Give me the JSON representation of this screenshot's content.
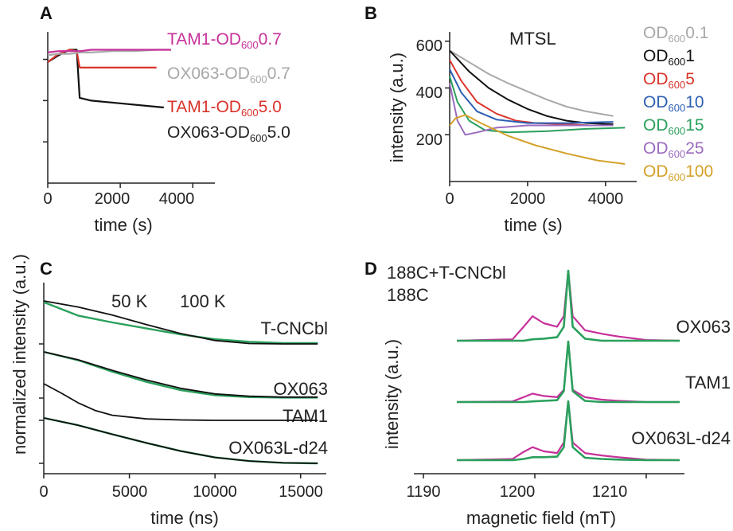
{
  "left_ylabel": "normalized intensity (a.u.)",
  "chart_data": [
    {
      "panel": "A",
      "type": "line",
      "xlabel": "time (s)",
      "xlim": [
        0,
        4500
      ],
      "ylim": [
        0,
        1.1
      ],
      "xticks": [
        "0",
        "2000",
        "4000"
      ],
      "series": [
        {
          "pre": "TAM1-OD",
          "sub": "600",
          "post": "0.7",
          "color": "#c7309a",
          "x": [
            0,
            300,
            600,
            900,
            1200,
            1800,
            2400,
            3000,
            3400
          ],
          "y": [
            0.95,
            0.96,
            0.96,
            0.96,
            0.97,
            0.97,
            0.97,
            0.97,
            0.97
          ]
        },
        {
          "pre": "OX063-OD",
          "sub": "600",
          "post": "0.7",
          "color": "#a8a8a8",
          "x": [
            0,
            300,
            600,
            900,
            1200,
            1800,
            2400,
            3000,
            3400
          ],
          "y": [
            0.93,
            0.94,
            0.94,
            0.95,
            0.95,
            0.96,
            0.96,
            0.97,
            0.97
          ]
        },
        {
          "pre": "TAM1-OD",
          "sub": "600",
          "post": "5.0",
          "color": "#d9342b",
          "x": [
            0,
            300,
            600,
            800,
            880,
            1200,
            2000,
            3000
          ],
          "y": [
            0.88,
            0.94,
            0.97,
            0.96,
            0.84,
            0.84,
            0.84,
            0.84
          ]
        },
        {
          "pre": "OX063-OD",
          "sub": "600",
          "post": "5.0",
          "color": "#111111",
          "x": [
            0,
            300,
            600,
            800,
            880,
            1200,
            2000,
            3200
          ],
          "y": [
            0.88,
            0.93,
            0.97,
            0.97,
            0.62,
            0.6,
            0.58,
            0.55
          ]
        }
      ]
    },
    {
      "panel": "B",
      "type": "line",
      "title": "MTSL",
      "xlabel": "time (s)",
      "ylabel": "intensity (a.u.)",
      "xlim": [
        0,
        4800
      ],
      "ylim": [
        0,
        640
      ],
      "xticks": [
        "0",
        "2000",
        "4000"
      ],
      "yticks": [
        "200",
        "400",
        "600"
      ],
      "series": [
        {
          "pre": "OD",
          "sub": "600",
          "post": "0.1",
          "color": "#a8a8a8",
          "x": [
            0,
            500,
            1000,
            1500,
            2000,
            2500,
            3000,
            3500,
            4200
          ],
          "y": [
            560,
            510,
            460,
            420,
            385,
            350,
            320,
            300,
            280
          ]
        },
        {
          "pre": "OD",
          "sub": "600",
          "post": "1",
          "color": "#111111",
          "x": [
            0,
            500,
            1000,
            1500,
            2000,
            2500,
            3000,
            3500,
            4200
          ],
          "y": [
            560,
            470,
            400,
            350,
            310,
            280,
            260,
            250,
            245
          ]
        },
        {
          "pre": "OD",
          "sub": "600",
          "post": "5",
          "color": "#d9342b",
          "x": [
            0,
            300,
            700,
            1200,
            1700,
            2200,
            3000,
            3600
          ],
          "y": [
            520,
            430,
            340,
            290,
            260,
            250,
            245,
            240
          ]
        },
        {
          "pre": "OD",
          "sub": "600",
          "post": "10",
          "color": "#2c5fb3",
          "x": [
            0,
            300,
            700,
            1200,
            2000,
            3000,
            4200
          ],
          "y": [
            480,
            380,
            300,
            265,
            250,
            250,
            255
          ]
        },
        {
          "pre": "OD",
          "sub": "600",
          "post": "15",
          "color": "#2aa05c",
          "x": [
            0,
            200,
            500,
            900,
            1500,
            2500,
            3500,
            4500
          ],
          "y": [
            450,
            340,
            260,
            220,
            210,
            215,
            225,
            230
          ]
        },
        {
          "pre": "OD",
          "sub": "600",
          "post": "25",
          "color": "#9b6bbf",
          "x": [
            0,
            200,
            400,
            700,
            1200,
            2000,
            3000,
            4200
          ],
          "y": [
            420,
            260,
            200,
            210,
            230,
            240,
            240,
            240
          ]
        },
        {
          "pre": "OD",
          "sub": "600",
          "post": "100",
          "color": "#d4a12a",
          "x": [
            0,
            150,
            400,
            800,
            1500,
            2200,
            3000,
            3800,
            4500
          ],
          "y": [
            240,
            270,
            285,
            250,
            195,
            155,
            120,
            90,
            75
          ]
        }
      ]
    },
    {
      "panel": "C",
      "type": "line",
      "xlabel": "time (ns)",
      "xlim": [
        0,
        16500
      ],
      "xticks": [
        "0",
        "5000",
        "10000",
        "15000"
      ],
      "temps": [
        {
          "label": "50 K",
          "color": "#111111"
        },
        {
          "label": "100 K",
          "color": "#2aa05c"
        }
      ],
      "traces": [
        {
          "label": "T-CNCbl",
          "x": [
            0,
            2000,
            4000,
            6000,
            8000,
            10000,
            12000,
            14000,
            16000
          ],
          "black": [
            1.0,
            0.86,
            0.67,
            0.45,
            0.24,
            0.08,
            0.01,
            0.0,
            0.0
          ],
          "green": [
            0.97,
            0.66,
            0.5,
            0.36,
            0.22,
            0.11,
            0.05,
            0.02,
            0.02
          ]
        },
        {
          "label": "OX063",
          "x": [
            0,
            2000,
            4000,
            6000,
            8000,
            10000,
            12000,
            14000,
            16000
          ],
          "black": [
            1.0,
            0.83,
            0.6,
            0.39,
            0.21,
            0.09,
            0.04,
            0.02,
            0.02
          ],
          "green": [
            1.0,
            0.82,
            0.57,
            0.35,
            0.17,
            0.06,
            0.02,
            0.01,
            0.01
          ]
        },
        {
          "label": "TAM1",
          "x": [
            0,
            1000,
            2000,
            3000,
            4000,
            6000,
            8000,
            10000,
            12000,
            16000
          ],
          "black": [
            1.0,
            0.75,
            0.48,
            0.27,
            0.14,
            0.04,
            0.01,
            0.0,
            0.0,
            0.0
          ]
        },
        {
          "label": "OX063L-d24",
          "x": [
            0,
            2000,
            4000,
            6000,
            8000,
            10000,
            12000,
            14000,
            16000
          ],
          "black": [
            1.0,
            0.84,
            0.64,
            0.45,
            0.27,
            0.13,
            0.05,
            0.01,
            0.0
          ],
          "green": [
            1.0,
            0.84,
            0.64,
            0.45,
            0.27,
            0.13,
            0.05,
            0.01,
            0.0
          ]
        }
      ]
    },
    {
      "panel": "D",
      "type": "line",
      "xlabel": "magnetic field (mT)",
      "ylabel": "intensity (a.u.)",
      "xlim": [
        1190,
        1215
      ],
      "xticks": [
        "1190",
        "1200",
        "1210"
      ],
      "legend": [
        {
          "label": "188C+T-CNCbl",
          "color": "#c7309a"
        },
        {
          "label": "188C",
          "color": "#2aa05c"
        }
      ],
      "traces": [
        {
          "label": "OX063",
          "x": [
            1193,
            1198,
            1199,
            1199.8,
            1200.8,
            1202,
            1202.6,
            1203,
            1203.4,
            1204.5,
            1206,
            1207.5,
            1210,
            1213
          ],
          "magenta": [
            0.0,
            0.02,
            0.2,
            0.35,
            0.25,
            0.2,
            0.35,
            1.0,
            0.35,
            0.15,
            0.1,
            0.06,
            0.01,
            0.0
          ],
          "green": [
            0.0,
            0.0,
            0.0,
            0.02,
            0.03,
            0.05,
            0.2,
            1.0,
            0.2,
            0.03,
            0.0,
            0.0,
            0.0,
            0.0
          ]
        },
        {
          "label": "TAM1",
          "x": [
            1193,
            1198,
            1199,
            1199.8,
            1200.8,
            1202,
            1202.6,
            1203,
            1203.4,
            1204.5,
            1206,
            1207.5,
            1210,
            1213
          ],
          "magenta": [
            0.0,
            0.01,
            0.08,
            0.14,
            0.1,
            0.08,
            0.2,
            1.0,
            0.2,
            0.08,
            0.04,
            0.02,
            0.0,
            0.0
          ],
          "green": [
            0.0,
            0.0,
            0.0,
            0.01,
            0.02,
            0.03,
            0.18,
            1.0,
            0.18,
            0.02,
            0.0,
            0.0,
            0.0,
            0.0
          ]
        },
        {
          "label": "OX063L-d24",
          "x": [
            1193,
            1198,
            1199,
            1199.8,
            1200.8,
            1202,
            1202.6,
            1203,
            1203.4,
            1204.5,
            1206,
            1207.5,
            1210,
            1213
          ],
          "magenta": [
            0.0,
            0.02,
            0.14,
            0.22,
            0.15,
            0.12,
            0.3,
            1.0,
            0.3,
            0.12,
            0.08,
            0.05,
            0.01,
            0.0
          ],
          "green": [
            0.0,
            0.0,
            0.02,
            0.05,
            0.05,
            0.06,
            0.22,
            1.0,
            0.22,
            0.04,
            0.02,
            0.01,
            0.0,
            0.0
          ]
        }
      ]
    }
  ]
}
